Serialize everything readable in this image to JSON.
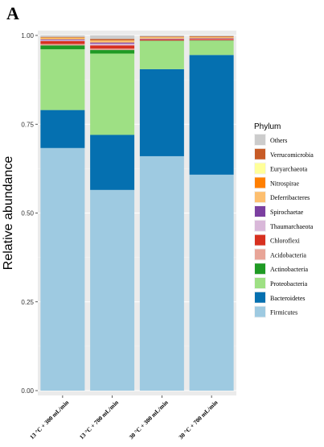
{
  "panel_label": "A",
  "chart_data": {
    "type": "bar",
    "stacked": true,
    "title": "",
    "xlabel": "",
    "ylabel": "Relative abundance",
    "ylim": [
      0,
      1
    ],
    "yticks": [
      "0.00",
      "0.25",
      "0.50",
      "0.75",
      "1.00"
    ],
    "ytick_values": [
      0,
      0.25,
      0.5,
      0.75,
      1.0
    ],
    "categories": [
      "13 °C + 300 mL/min",
      "13 °C + 700 mL/min",
      "30 °C + 300 mL/min",
      "30 °C + 700 mL/min"
    ],
    "grid": true,
    "legend": {
      "title": "Phylum",
      "placement": "right"
    },
    "series": [
      {
        "name": "Firmicutes",
        "color": "#9ecae1",
        "values": [
          0.683,
          0.565,
          0.66,
          0.608
        ]
      },
      {
        "name": "Bacteroidetes",
        "color": "#0570b0",
        "values": [
          0.107,
          0.155,
          0.245,
          0.337
        ]
      },
      {
        "name": "Proteobacteria",
        "color": "#9ee084",
        "values": [
          0.171,
          0.229,
          0.079,
          0.04
        ]
      },
      {
        "name": "Actinobacteria",
        "color": "#1f9a24",
        "values": [
          0.011,
          0.01,
          0.001,
          0.001
        ]
      },
      {
        "name": "Acidobacteria",
        "color": "#e8a598",
        "values": [
          0.004,
          0.004,
          0.001,
          0.001
        ]
      },
      {
        "name": "Chloroflexi",
        "color": "#d7301f",
        "values": [
          0.008,
          0.009,
          0.003,
          0.003
        ]
      },
      {
        "name": "Thaumarchaeota",
        "color": "#d9b8d9",
        "values": [
          0.003,
          0.005,
          0.001,
          0.001
        ]
      },
      {
        "name": "Spirochaetae",
        "color": "#7b3fa0",
        "values": [
          0.002,
          0.003,
          0.001,
          0.001
        ]
      },
      {
        "name": "Deferribacteres",
        "color": "#fdbf6f",
        "values": [
          0.003,
          0.004,
          0.002,
          0.002
        ]
      },
      {
        "name": "Nitrospirae",
        "color": "#ff7f00",
        "values": [
          0.001,
          0.001,
          0.001,
          0.001
        ]
      },
      {
        "name": "Euryarchaeota",
        "color": "#ffff99",
        "values": [
          0.001,
          0.001,
          0.001,
          0.001
        ]
      },
      {
        "name": "Verrucomicrobia",
        "color": "#c75b26",
        "values": [
          0.002,
          0.004,
          0.002,
          0.002
        ]
      },
      {
        "name": "Others",
        "color": "#cccccc",
        "values": [
          0.004,
          0.01,
          0.003,
          0.002
        ]
      }
    ]
  }
}
